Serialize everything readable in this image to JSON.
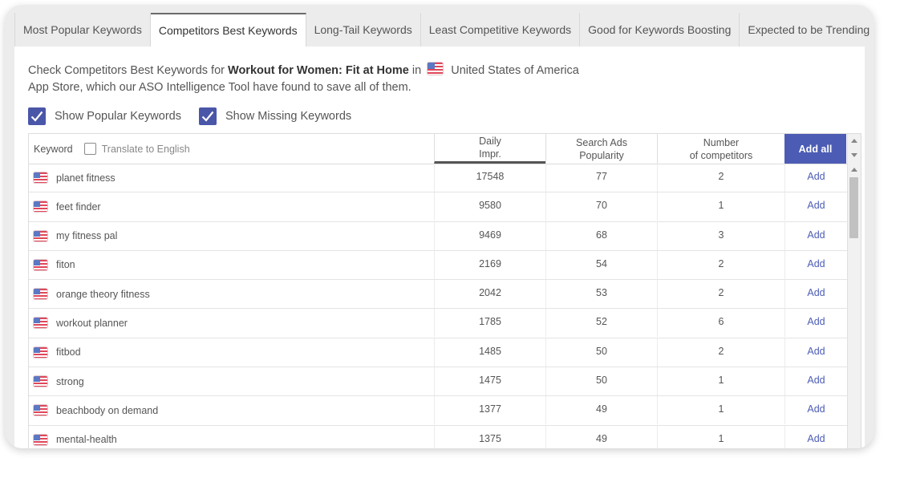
{
  "tabs": [
    {
      "label": "Most Popular Keywords",
      "active": false
    },
    {
      "label": "Competitors Best Keywords",
      "active": true
    },
    {
      "label": "Long-Tail Keywords",
      "active": false
    },
    {
      "label": "Least Competitive Keywords",
      "active": false
    },
    {
      "label": "Good for Keywords Boosting",
      "active": false
    },
    {
      "label": "Expected to be Trending",
      "active": false
    }
  ],
  "intro": {
    "prefix": "Check Competitors Best Keywords for",
    "app_name": "Workout for Women: Fit at Home",
    "in_word": "in",
    "country": "United States of America",
    "suffix": "App Store, which our ASO Intelligence Tool have found to save all of them."
  },
  "options": {
    "show_popular": {
      "label": "Show Popular Keywords",
      "checked": true
    },
    "show_missing": {
      "label": "Show Missing Keywords",
      "checked": true
    }
  },
  "table": {
    "headers": {
      "keyword": "Keyword",
      "translate": "Translate to English",
      "daily_line1": "Daily",
      "daily_line2": "Impr.",
      "search_ads_line1": "Search Ads",
      "search_ads_line2": "Popularity",
      "competitors_line1": "Number",
      "competitors_line2": "of competitors",
      "add_all": "Add all"
    },
    "add_label": "Add",
    "rows": [
      {
        "keyword": "planet fitness",
        "daily": "17548",
        "popularity": "77",
        "competitors": "2"
      },
      {
        "keyword": "feet finder",
        "daily": "9580",
        "popularity": "70",
        "competitors": "1"
      },
      {
        "keyword": "my fitness pal",
        "daily": "9469",
        "popularity": "68",
        "competitors": "3"
      },
      {
        "keyword": "fiton",
        "daily": "2169",
        "popularity": "54",
        "competitors": "2"
      },
      {
        "keyword": "orange theory fitness",
        "daily": "2042",
        "popularity": "53",
        "competitors": "2"
      },
      {
        "keyword": "workout planner",
        "daily": "1785",
        "popularity": "52",
        "competitors": "6"
      },
      {
        "keyword": "fitbod",
        "daily": "1485",
        "popularity": "50",
        "competitors": "2"
      },
      {
        "keyword": "strong",
        "daily": "1475",
        "popularity": "50",
        "competitors": "1"
      },
      {
        "keyword": "beachbody on demand",
        "daily": "1377",
        "popularity": "49",
        "competitors": "1"
      },
      {
        "keyword": "mental-health",
        "daily": "1375",
        "popularity": "49",
        "competitors": "1"
      }
    ]
  },
  "colors": {
    "accent": "#4c5cb5",
    "checkbox": "#4a56a8",
    "tab_bg": "#ececec"
  }
}
